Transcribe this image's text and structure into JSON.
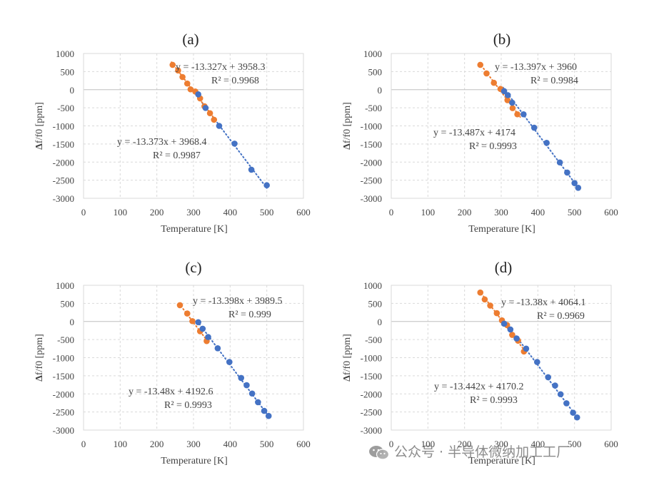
{
  "chart_data": [
    {
      "type": "scatter",
      "title": "(a)",
      "xlabel": "Temperature [K]",
      "ylabel": "Δf/f0 [ppm]",
      "xlim": [
        0,
        600
      ],
      "ylim": [
        -3000,
        1000
      ],
      "xticks": [
        "0",
        "100",
        "200",
        "300",
        "400",
        "500",
        "600"
      ],
      "yticks": [
        "1000",
        "500",
        "0",
        "-500",
        "-1000",
        "-1500",
        "-2000",
        "-2500",
        "-3000"
      ],
      "grid": true,
      "series": [
        {
          "color": "#4472c4",
          "points": [
            [
              313,
              -130
            ],
            [
              333,
              -505
            ],
            [
              370,
              -1000
            ],
            [
              412,
              -1490
            ],
            [
              458,
              -2210
            ],
            [
              500,
              -2640
            ]
          ],
          "trendline": {
            "slope": -13.373,
            "intercept": 3968.4,
            "x_range": [
              300,
              500
            ]
          },
          "equation": "y = -13.373x + 3968.4",
          "r2": "R² = 0.9987"
        },
        {
          "color": "#ed7d31",
          "points": [
            [
              243,
              685
            ],
            [
              258,
              530
            ],
            [
              270,
              350
            ],
            [
              283,
              170
            ],
            [
              292,
              10
            ],
            [
              305,
              -50
            ],
            [
              318,
              -240
            ],
            [
              330,
              -460
            ],
            [
              345,
              -650
            ],
            [
              356,
              -830
            ]
          ],
          "trendline": {
            "slope": -13.327,
            "intercept": 3958.3,
            "x_range": [
              240,
              358
            ]
          },
          "equation": "y = -13.327x + 3958.3",
          "r2": "R² = 0.9968"
        }
      ]
    },
    {
      "type": "scatter",
      "title": "(b)",
      "xlabel": "Temperature [K]",
      "ylabel": "Δf/f0 [ppm]",
      "xlim": [
        0,
        600
      ],
      "ylim": [
        -3000,
        1000
      ],
      "xticks": [
        "0",
        "100",
        "200",
        "300",
        "400",
        "500",
        "600"
      ],
      "yticks": [
        "1000",
        "500",
        "0",
        "-500",
        "-1000",
        "-1500",
        "-2000",
        "-2500",
        "-3000"
      ],
      "grid": true,
      "series": [
        {
          "color": "#4472c4",
          "points": [
            [
              308,
              -40
            ],
            [
              318,
              -150
            ],
            [
              330,
              -360
            ],
            [
              361,
              -680
            ],
            [
              390,
              -1050
            ],
            [
              424,
              -1470
            ],
            [
              460,
              -2010
            ],
            [
              480,
              -2290
            ],
            [
              500,
              -2580
            ],
            [
              510,
              -2710
            ]
          ],
          "trendline": {
            "slope": -13.487,
            "intercept": 4174,
            "x_range": [
              305,
              512
            ]
          },
          "equation": "y = -13.487x + 4174",
          "r2": "R² = 0.9993"
        },
        {
          "color": "#ed7d31",
          "points": [
            [
              243,
              685
            ],
            [
              260,
              450
            ],
            [
              280,
              190
            ],
            [
              298,
              20
            ],
            [
              317,
              -290
            ],
            [
              331,
              -510
            ],
            [
              344,
              -680
            ]
          ],
          "trendline": {
            "slope": -13.397,
            "intercept": 3960,
            "x_range": [
              240,
              352
            ]
          },
          "equation": "y = -13.397x + 3960",
          "r2": "R² = 0.9984"
        }
      ]
    },
    {
      "type": "scatter",
      "title": "(c)",
      "xlabel": "Temperature [K]",
      "ylabel": "Δf/f0 [ppm]",
      "xlim": [
        0,
        600
      ],
      "ylim": [
        -3000,
        1000
      ],
      "xticks": [
        "0",
        "100",
        "200",
        "300",
        "400",
        "500",
        "600"
      ],
      "yticks": [
        "1000",
        "500",
        "0",
        "-500",
        "-1000",
        "-1500",
        "-2000",
        "-2500",
        "-3000"
      ],
      "grid": true,
      "series": [
        {
          "color": "#4472c4",
          "points": [
            [
              313,
              -20
            ],
            [
              325,
              -200
            ],
            [
              340,
              -430
            ],
            [
              366,
              -740
            ],
            [
              398,
              -1120
            ],
            [
              430,
              -1560
            ],
            [
              445,
              -1760
            ],
            [
              460,
              -1990
            ],
            [
              476,
              -2230
            ],
            [
              493,
              -2470
            ],
            [
              505,
              -2610
            ]
          ],
          "trendline": {
            "slope": -13.48,
            "intercept": 4192.6,
            "x_range": [
              310,
              508
            ]
          },
          "equation": "y = -13.48x + 4192.6",
          "r2": "R² = 0.9993"
        },
        {
          "color": "#ed7d31",
          "points": [
            [
              263,
              450
            ],
            [
              283,
              220
            ],
            [
              297,
              10
            ],
            [
              318,
              -270
            ],
            [
              336,
              -540
            ]
          ],
          "trendline": {
            "slope": -13.398,
            "intercept": 3989.5,
            "x_range": [
              260,
              342
            ]
          },
          "equation": "y = -13.398x + 3989.5",
          "r2": "R² = 0.999"
        }
      ]
    },
    {
      "type": "scatter",
      "title": "(d)",
      "xlabel": "Temperature [K]",
      "ylabel": "Δf/f0 [ppm]",
      "xlim": [
        0,
        600
      ],
      "ylim": [
        -3000,
        1000
      ],
      "xticks": [
        "0",
        "100",
        "200",
        "300",
        "400",
        "500",
        "600"
      ],
      "yticks": [
        "1000",
        "500",
        "0",
        "-500",
        "-1000",
        "-1500",
        "-2000",
        "-2500",
        "-3000"
      ],
      "grid": true,
      "series": [
        {
          "color": "#4472c4",
          "points": [
            [
              308,
              -60
            ],
            [
              325,
              -220
            ],
            [
              342,
              -470
            ],
            [
              368,
              -750
            ],
            [
              398,
              -1120
            ],
            [
              428,
              -1540
            ],
            [
              447,
              -1770
            ],
            [
              462,
              -2010
            ],
            [
              478,
              -2260
            ],
            [
              496,
              -2520
            ],
            [
              507,
              -2650
            ]
          ],
          "trendline": {
            "slope": -13.442,
            "intercept": 4170.2,
            "x_range": [
              305,
              510
            ]
          },
          "equation": "y = -13.442x + 4170.2",
          "r2": "R² = 0.9993"
        },
        {
          "color": "#ed7d31",
          "points": [
            [
              243,
              800
            ],
            [
              255,
              610
            ],
            [
              270,
              440
            ],
            [
              288,
              230
            ],
            [
              302,
              30
            ],
            [
              316,
              -100
            ],
            [
              330,
              -370
            ],
            [
              346,
              -530
            ],
            [
              362,
              -830
            ]
          ],
          "trendline": {
            "slope": -13.38,
            "intercept": 4064.1,
            "x_range": [
              240,
              368
            ]
          },
          "equation": "y = -13.38x + 4064.1",
          "r2": "R² = 0.9969"
        }
      ]
    }
  ],
  "watermark": {
    "text": "公众号 · 半导体微纳加工工厂",
    "icon": "wechat-icon"
  }
}
